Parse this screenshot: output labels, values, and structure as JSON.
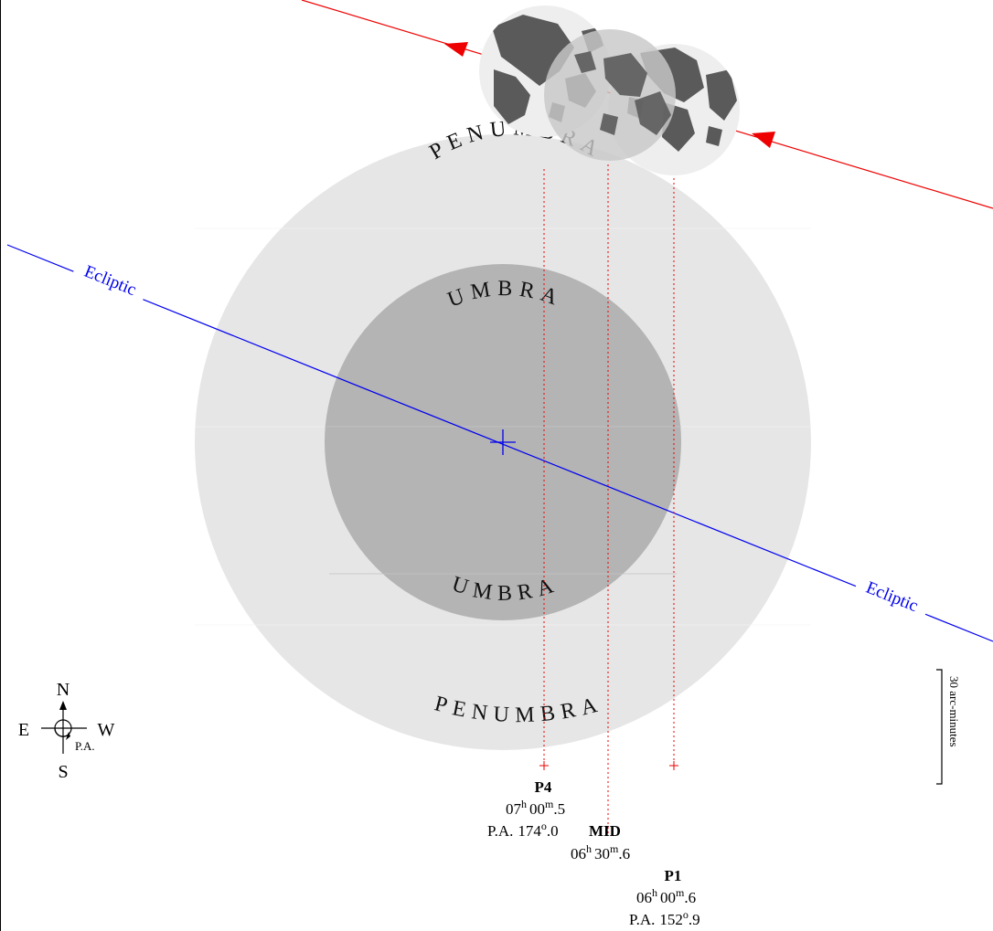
{
  "diagram": {
    "penumbra_label": "PENUMBRA",
    "umbra_label": "UMBRA",
    "ecliptic_label": "Ecliptic",
    "scale_label": "30 arc-minutes",
    "compass": {
      "north": "N",
      "south": "S",
      "east": "E",
      "west": "W",
      "pa": "P.A."
    },
    "events": {
      "p4": {
        "name": "P4",
        "time_h": "07",
        "time_m": "00",
        "time_frac": "5",
        "pa_label": "P.A.",
        "pa_int": "174",
        "pa_frac": "0"
      },
      "mid": {
        "name": "MID",
        "time_h": "06",
        "time_m": "30",
        "time_frac": "6"
      },
      "p1": {
        "name": "P1",
        "time_h": "06",
        "time_m": "00",
        "time_frac": "6",
        "pa_label": "P.A.",
        "pa_int": "152",
        "pa_frac": "9"
      }
    },
    "units": {
      "hour": "h",
      "minute": "m",
      "degree": "o",
      "dot": "."
    },
    "colors": {
      "penumbra": "#e6e6e6",
      "umbra": "#b4b4b4",
      "ecliptic": "#0000ee",
      "moon_path": "#ee0000",
      "moon_disk": "#eeeeee",
      "moon_maria": "#5a5a5a"
    }
  }
}
